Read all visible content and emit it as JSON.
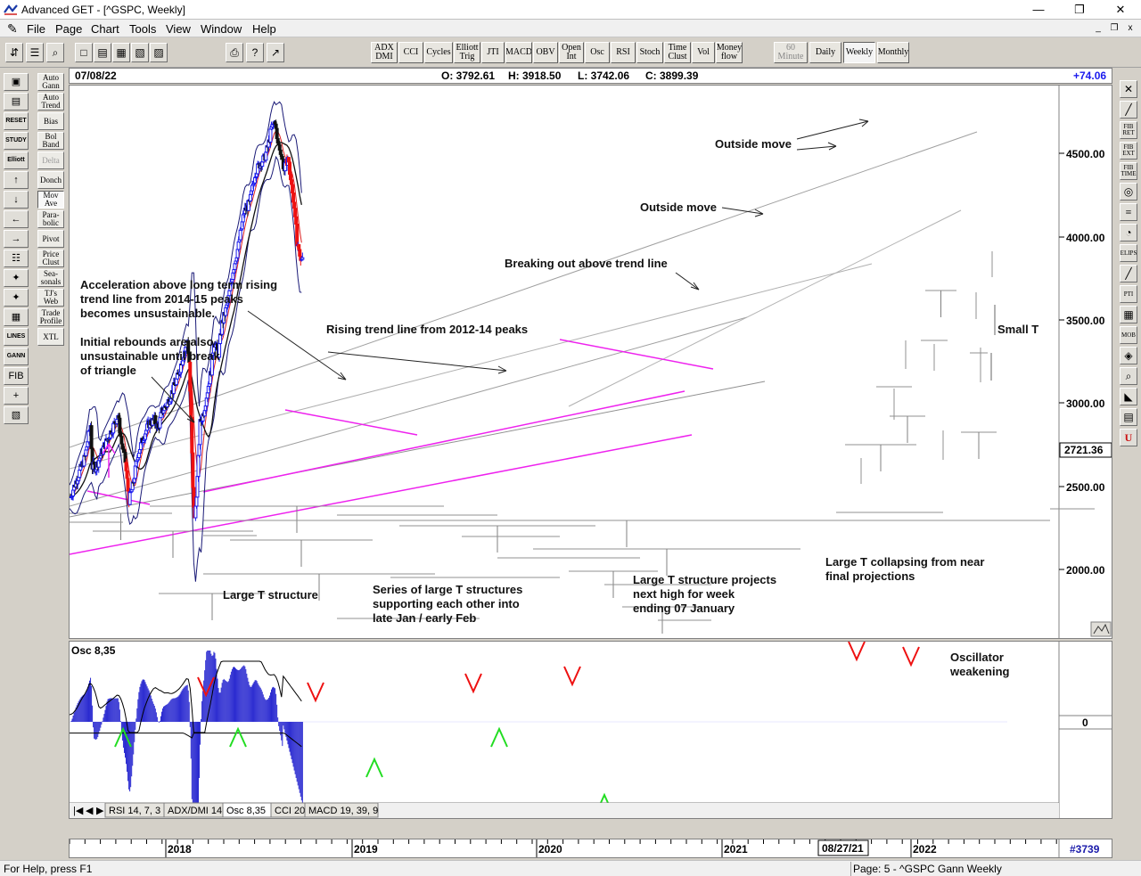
{
  "window": {
    "title": "Advanced GET - [^GSPC, Weekly]",
    "minimize": "—",
    "maximize": "❐",
    "close": "✕"
  },
  "menu": {
    "items": [
      "File",
      "Page",
      "Chart",
      "Tools",
      "View",
      "Window",
      "Help"
    ],
    "mdi": [
      "_",
      "❐",
      "x"
    ]
  },
  "toolbar": {
    "file_icons": [
      "⇵",
      "☰",
      "⌕",
      "□",
      "▤",
      "▦",
      "▧",
      "▨",
      "⎙",
      "?",
      "↗"
    ],
    "study_buttons": [
      "ADX DMI",
      "CCI",
      "Cycles",
      "Elliott Trig",
      "JTI",
      "MACD",
      "OBV",
      "Open Int",
      "Osc",
      "RSI",
      "Stoch",
      "Time Clust",
      "Vol",
      "Money flow"
    ],
    "timeframes": [
      {
        "label": "60 Minute",
        "state": "disabled"
      },
      {
        "label": "Daily",
        "state": "normal"
      },
      {
        "label": "Weekly",
        "state": "pressed"
      },
      {
        "label": "Monthly",
        "state": "normal"
      }
    ]
  },
  "left_toolbar": {
    "icons": [
      "▣",
      "▤",
      "RESET",
      "STUDY",
      "Elliott",
      "↑",
      "↓",
      "←",
      "→",
      "☷",
      "✦",
      "✦",
      "▦",
      "LINES",
      "GANN",
      "FIB",
      "+",
      "▧"
    ],
    "studies": [
      {
        "label": "Auto Gann",
        "state": "normal"
      },
      {
        "label": "Auto Trend",
        "state": "normal"
      },
      {
        "label": "Bias",
        "state": "normal"
      },
      {
        "label": "Bol Band",
        "state": "normal"
      },
      {
        "label": "Delta",
        "state": "disabled"
      },
      {
        "label": "Donch",
        "state": "normal"
      },
      {
        "label": "Mov Ave",
        "state": "pressed"
      },
      {
        "label": "Para-bolic",
        "state": "normal"
      },
      {
        "label": "Pivot",
        "state": "normal"
      },
      {
        "label": "Price Clust",
        "state": "normal"
      },
      {
        "label": "Sea-sonals",
        "state": "normal"
      },
      {
        "label": "TJ's Web",
        "state": "normal"
      },
      {
        "label": "Trade Profile",
        "state": "normal"
      },
      {
        "label": "XTL",
        "state": "normal"
      }
    ]
  },
  "right_toolbar": {
    "icons": [
      "✕",
      "╱",
      "FIB RET",
      "FIB EXT",
      "FIB TIME",
      "◎",
      "≡",
      "◔",
      "ELIPS",
      "╱",
      "PTI",
      "▦",
      "MOB",
      "◈",
      "⌕",
      "◣",
      "▤",
      "U"
    ]
  },
  "infobar": {
    "date": "07/08/22",
    "open": "O: 3792.61",
    "high": "H: 3918.50",
    "low": "L: 3742.06",
    "close": "C: 3899.39",
    "change": "+74.06"
  },
  "price_axis": {
    "labels": [
      "4500.00",
      "4000.00",
      "3500.00",
      "3000.00",
      "2500.00",
      "2000.00"
    ],
    "current_value": "2721.36"
  },
  "oscillator": {
    "title": "Osc 8,35",
    "zero_label": "0",
    "annotation": [
      "Oscillator",
      "weakening"
    ]
  },
  "annotations": {
    "outside_move_1": "Outside move",
    "outside_move_2": "Outside move",
    "breaking_out": "Breaking out above trend line",
    "acceleration": [
      "Acceleration above long term rising",
      "trend line from 2014-15 peaks",
      "becomes unsustainable."
    ],
    "rising_trend": "Rising trend line from 2012-14 peaks",
    "initial_rebounds": [
      "Initial rebounds are also",
      "unsustainable until break",
      "of triangle"
    ],
    "small_t": "Small T",
    "large_t": "Large T structure",
    "series_t": [
      "Series of large T structures",
      "supporting each other into",
      "late Jan / early Feb"
    ],
    "large_t_projects": [
      "Large T structure projects",
      "next high for week",
      "ending 07 January"
    ],
    "large_t_collapsing": [
      "Large T collapsing from near",
      "final projections"
    ]
  },
  "tabs": [
    "RSI 14, 7, 3",
    "ADX/DMI 14",
    "Osc 8,35",
    "CCI 20",
    "MACD 19, 39, 9"
  ],
  "tabs_active": "Osc 8,35",
  "date_axis": {
    "labels": [
      "2018",
      "2019",
      "2020",
      "2021",
      "2022"
    ],
    "cursor_date": "08/27/21",
    "bar_count": "#3739"
  },
  "status": {
    "help": "For Help, press F1",
    "page": "Page: 5 - ^GSPC Gann Weekly"
  },
  "colors": {
    "up_bar": "#1a1aee",
    "down_bar": "#ee1111",
    "ma_fast": "#22bb22",
    "ma_mid": "#dd2222",
    "ma_slow": "#111111",
    "bollinger": "#1a1a77",
    "triangle": "#ee22ee",
    "trend_line": "#a0a0a0",
    "osc_hist": "#2a2ad0",
    "green_arrow": "#22dd22",
    "red_arrow": "#ee1111"
  }
}
